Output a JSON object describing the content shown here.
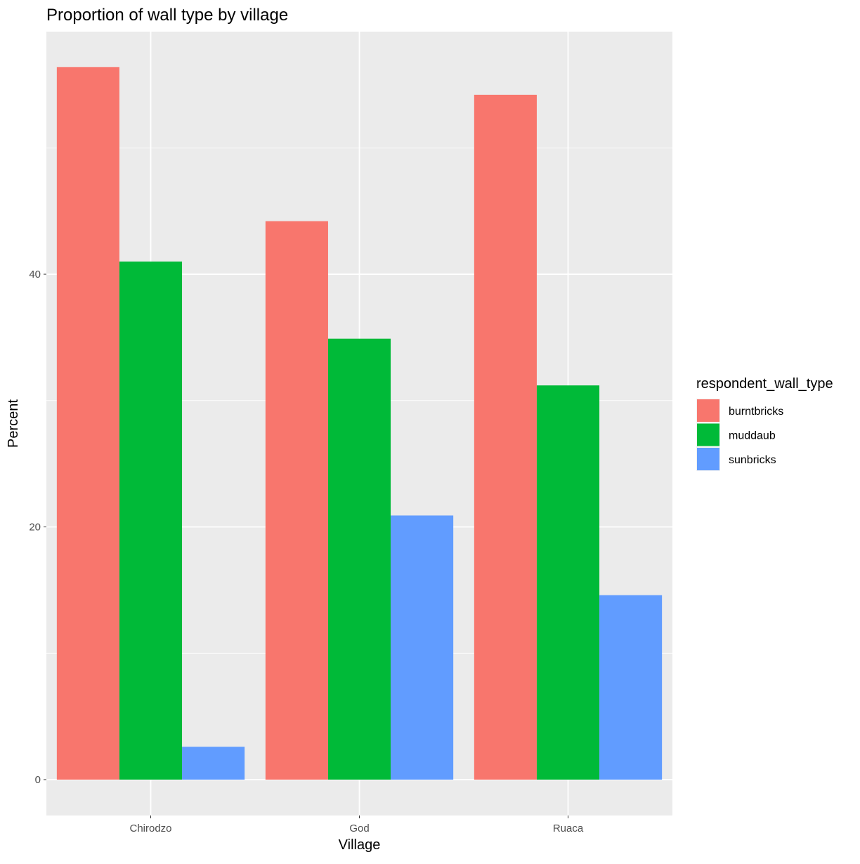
{
  "chart_data": {
    "type": "bar",
    "title": "Proportion of wall type by village",
    "xlabel": "Village",
    "ylabel": "Percent",
    "categories": [
      "Chirodzo",
      "God",
      "Ruaca"
    ],
    "series": [
      {
        "name": "burntbricks",
        "color": "#F8766D",
        "values": [
          56.4,
          44.2,
          54.2
        ]
      },
      {
        "name": "muddaub",
        "color": "#00BA38",
        "values": [
          41.0,
          34.9,
          31.2
        ]
      },
      {
        "name": "sunbricks",
        "color": "#619CFF",
        "values": [
          2.6,
          20.9,
          14.6
        ]
      }
    ],
    "ylim": [
      -2.84,
      59.2
    ],
    "yticks": [
      0,
      20,
      40
    ],
    "grid": true,
    "legend": {
      "title": "respondent_wall_type",
      "placement": "right"
    },
    "panel_background": "#EBEBEB"
  }
}
